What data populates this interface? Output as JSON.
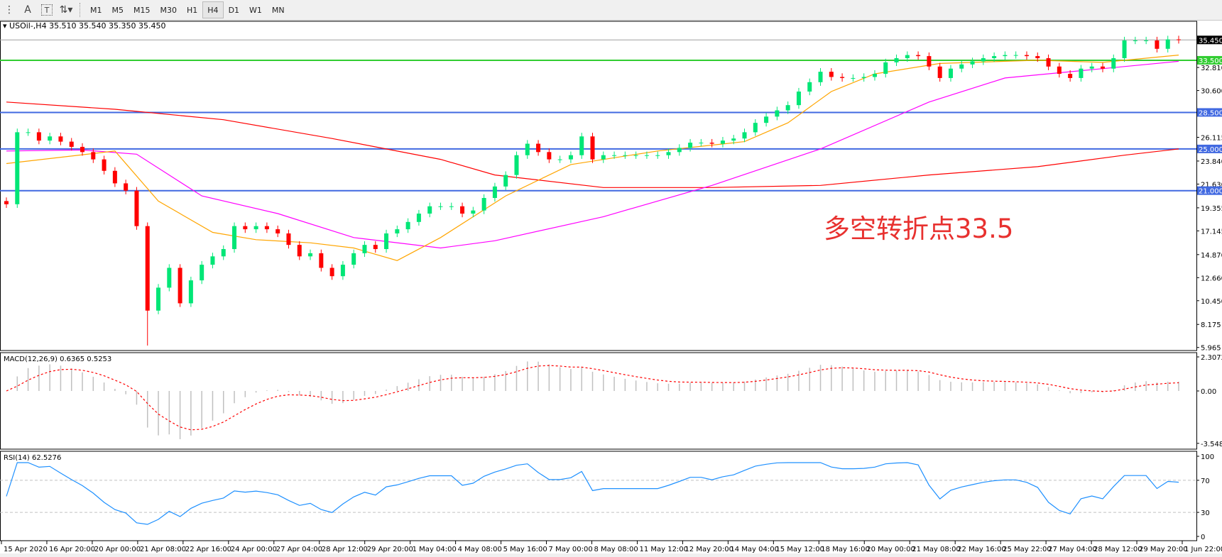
{
  "toolbar": {
    "icons": [
      "grid-icon",
      "text-a-icon",
      "text-label-icon",
      "arrows-icon"
    ],
    "timeframes": [
      "M1",
      "M5",
      "M15",
      "M30",
      "H1",
      "H4",
      "D1",
      "W1",
      "MN"
    ],
    "active_timeframe": "H4"
  },
  "main": {
    "title": "USOil-,H4  35.510 35.540 35.350 35.450",
    "annotation": "多空转折点33.5"
  },
  "macd": {
    "title": "MACD(12,26,9) 0.6365 0.5253",
    "axis": [
      "2.3072",
      "0.00",
      "-3.5484"
    ]
  },
  "rsi": {
    "title": "RSI(14) 62.5276",
    "axis": [
      "100",
      "70",
      "30",
      "0"
    ]
  },
  "colors": {
    "bull": "#00e676",
    "bear": "#ff0000",
    "ma_red": "#ff0000",
    "ma_magenta": "#ff00ff",
    "ma_orange": "#ffa500",
    "level_blue": "#4169e1",
    "level_green": "#32cd32",
    "rsi": "#1e90ff",
    "macd_hist": "#c0c0c0",
    "macd_signal": "#ff0000"
  },
  "chart_data": {
    "type": "candlestick",
    "symbol": "USOil-",
    "timeframe": "H4",
    "ylim": [
      5.965,
      36.5
    ],
    "price_ticks": [
      "35.450",
      "33.500",
      "32.810",
      "30.600",
      "28.500",
      "26.115",
      "25.000",
      "23.840",
      "21.630",
      "21.000",
      "19.355",
      "17.145",
      "14.870",
      "12.660",
      "10.450",
      "8.175",
      "5.965"
    ],
    "levels": [
      {
        "value": 35.45,
        "label": "35.450",
        "kind": "current"
      },
      {
        "value": 33.5,
        "label": "33.500",
        "kind": "green"
      },
      {
        "value": 28.5,
        "label": "28.500",
        "kind": "blue"
      },
      {
        "value": 25.0,
        "label": "25.000",
        "kind": "blue"
      },
      {
        "value": 21.0,
        "label": "21.000",
        "kind": "blue"
      }
    ],
    "x_labels": [
      "15 Apr 2020",
      "16 Apr 20:00",
      "20 Apr 00:00",
      "21 Apr 08:00",
      "22 Apr 16:00",
      "24 Apr 00:00",
      "27 Apr 04:00",
      "28 Apr 12:00",
      "29 Apr 20:00",
      "1 May 04:00",
      "4 May 08:00",
      "5 May 16:00",
      "7 May 00:00",
      "8 May 08:00",
      "11 May 12:00",
      "12 May 20:00",
      "14 May 04:00",
      "15 May 12:00",
      "18 May 16:00",
      "20 May 00:00",
      "21 May 08:00",
      "22 May 16:00",
      "25 May 22:00",
      "27 May 04:00",
      "28 May 12:00",
      "29 May 20:00",
      "1 Jun 22:00"
    ],
    "closes": [
      19.7,
      26.6,
      26.6,
      25.8,
      26.2,
      25.7,
      25.2,
      24.7,
      24.0,
      22.9,
      21.7,
      21.0,
      17.6,
      9.5,
      11.7,
      13.6,
      10.2,
      12.4,
      13.9,
      14.7,
      15.4,
      17.6,
      17.3,
      17.6,
      17.3,
      16.9,
      15.8,
      14.7,
      15.0,
      13.6,
      12.8,
      13.9,
      15.0,
      15.8,
      15.4,
      16.9,
      17.3,
      18.0,
      18.8,
      19.5,
      19.5,
      19.5,
      18.8,
      19.1,
      20.3,
      21.4,
      22.5,
      24.4,
      25.5,
      24.7,
      24.0,
      24.0,
      24.4,
      26.2,
      24.0,
      24.4,
      24.4,
      24.4,
      24.4,
      24.4,
      24.4,
      24.7,
      25.1,
      25.6,
      25.6,
      25.5,
      25.8,
      26.0,
      26.6,
      27.5,
      28.1,
      28.7,
      29.2,
      30.5,
      31.4,
      32.4,
      31.9,
      31.8,
      31.8,
      31.9,
      32.2,
      33.3,
      33.7,
      34.0,
      33.9,
      32.9,
      31.8,
      32.7,
      33.1,
      33.4,
      33.7,
      33.9,
      34.0,
      34.0,
      33.9,
      33.7,
      32.9,
      32.2,
      31.8,
      32.7,
      32.9,
      32.7,
      33.7,
      35.4,
      35.4,
      35.4,
      34.6,
      35.5,
      35.45
    ],
    "ma_red": [
      [
        0,
        29.5
      ],
      [
        10,
        28.8
      ],
      [
        20,
        27.8
      ],
      [
        30,
        26.0
      ],
      [
        40,
        24.0
      ],
      [
        45,
        22.5
      ],
      [
        55,
        21.3
      ],
      [
        65,
        21.3
      ],
      [
        75,
        21.5
      ],
      [
        85,
        22.5
      ],
      [
        95,
        23.3
      ],
      [
        103,
        24.4
      ],
      [
        108,
        25.0
      ]
    ],
    "ma_magenta": [
      [
        0,
        24.8
      ],
      [
        7,
        24.9
      ],
      [
        12,
        24.5
      ],
      [
        18,
        20.5
      ],
      [
        25,
        18.8
      ],
      [
        32,
        16.5
      ],
      [
        40,
        15.5
      ],
      [
        45,
        16.2
      ],
      [
        55,
        18.5
      ],
      [
        65,
        21.5
      ],
      [
        75,
        25.0
      ],
      [
        85,
        29.5
      ],
      [
        92,
        31.8
      ],
      [
        100,
        32.6
      ],
      [
        108,
        33.4
      ]
    ],
    "ma_orange": [
      [
        0,
        23.6
      ],
      [
        10,
        24.8
      ],
      [
        14,
        20.0
      ],
      [
        19,
        17.0
      ],
      [
        23,
        16.3
      ],
      [
        28,
        16.0
      ],
      [
        32,
        15.5
      ],
      [
        36,
        14.3
      ],
      [
        40,
        16.5
      ],
      [
        46,
        20.5
      ],
      [
        52,
        23.5
      ],
      [
        60,
        24.8
      ],
      [
        68,
        25.7
      ],
      [
        72,
        27.5
      ],
      [
        76,
        30.5
      ],
      [
        80,
        32.2
      ],
      [
        86,
        33.2
      ],
      [
        95,
        33.5
      ],
      [
        101,
        33.3
      ],
      [
        108,
        34.0
      ]
    ]
  }
}
